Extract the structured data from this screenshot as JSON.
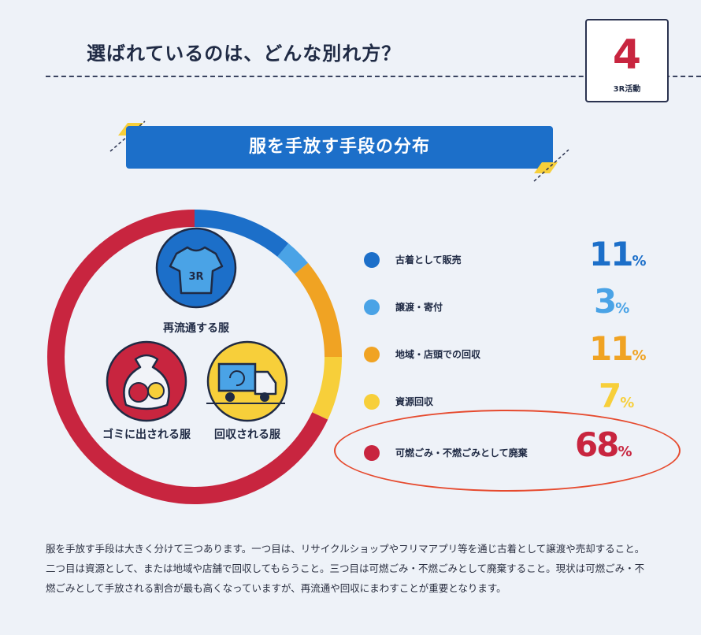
{
  "header": {
    "title": "選ばれているのは、どんな別れ方？",
    "badge_number": "4",
    "badge_label": "3R活動"
  },
  "banner": {
    "title": "服を手放す手段の分布"
  },
  "icons": {
    "recirculate_label": "再流通する服",
    "shirt_text": "3R",
    "garbage_label": "ゴミに出される服",
    "collect_label": "回収される服"
  },
  "colors": {
    "dark_blue": "#1c6fc9",
    "light_blue": "#4aa3e6",
    "orange": "#f0a323",
    "yellow": "#f7cf3a",
    "crimson": "#c8253f",
    "highlight": "#e64a2e"
  },
  "chart_data": {
    "type": "pie",
    "categories": [
      "古着として販売",
      "譲渡・寄付",
      "地域・店頭での回収",
      "資源回収",
      "可燃ごみ・不燃ごみとして廃棄"
    ],
    "values": [
      11,
      3,
      11,
      7,
      68
    ],
    "value_suffix": "%",
    "colors": [
      "#1c6fc9",
      "#4aa3e6",
      "#f0a323",
      "#f7cf3a",
      "#c8253f"
    ],
    "title": "服を手放す手段の分布",
    "legend": "right",
    "highlighted": "可燃ごみ・不燃ごみとして廃棄"
  },
  "body_text": "服を手放す手段は大きく分けて三つあります。一つ目は、リサイクルショップやフリマアプリ等を通じ古着として譲渡や売却すること。二つ目は資源として、または地域や店舗で回収してもらうこと。三つ目は可燃ごみ・不燃ごみとして廃棄すること。現状は可燃ごみ・不燃ごみとして手放される割合が最も高くなっていますが、再流通や回収にまわすことが重要となります。"
}
